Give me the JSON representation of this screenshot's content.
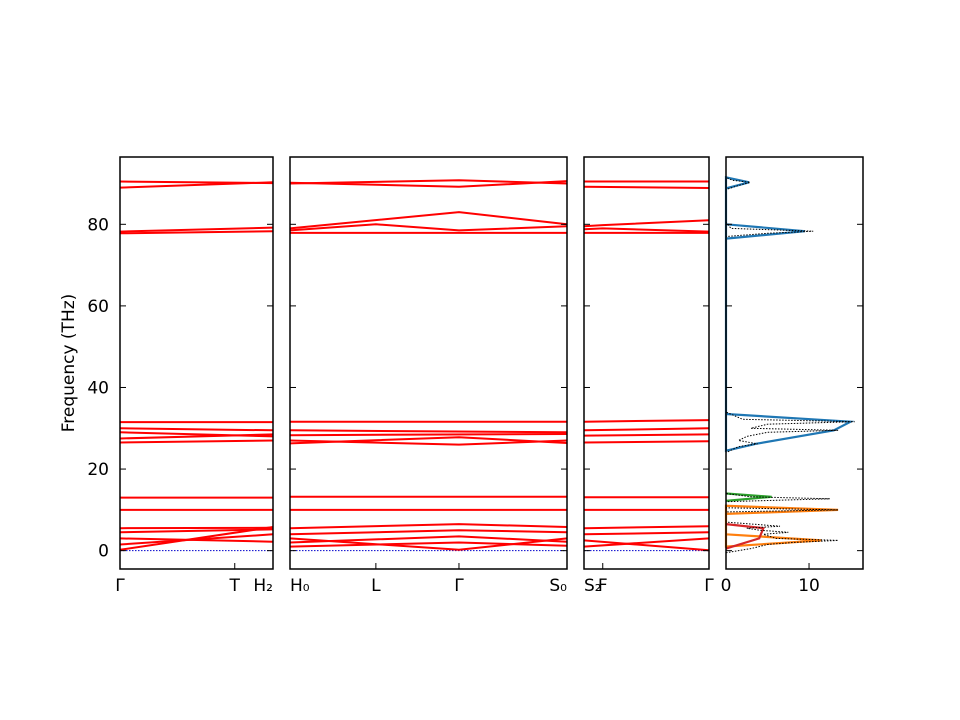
{
  "chart_data": {
    "type": "line",
    "ylabel": "Frequency (THz)",
    "ylim": [
      -4.5,
      96.5
    ],
    "yticks": [
      0,
      20,
      40,
      60,
      80
    ],
    "colors": {
      "bands": "#ff0000",
      "zero_line": "#0000cc",
      "dos_total": "#000000",
      "dos_high": "#1f77b4",
      "dos_mid_orange": "#ff7f0e",
      "dos_mid_green": "#2ca02c",
      "dos_low_red": "#d62728"
    },
    "panels": [
      {
        "tick_labels": [
          "Γ",
          "T",
          "H₂"
        ],
        "tick_positions": [
          0,
          0.75,
          1.0
        ]
      },
      {
        "tick_labels": [
          "H₀",
          "L",
          "Γ",
          "S₀"
        ],
        "tick_positions": [
          0,
          0.31,
          0.61,
          1.0
        ]
      },
      {
        "tick_labels": [
          "S₂",
          "F",
          "Γ"
        ],
        "tick_positions": [
          0,
          0.15,
          1.0
        ]
      }
    ],
    "bands": [
      {
        "panel": 0,
        "x": [
          0,
          1
        ],
        "y": [
          0.2,
          5.8
        ]
      },
      {
        "panel": 0,
        "x": [
          0,
          1
        ],
        "y": [
          1.5,
          4.0
        ]
      },
      {
        "panel": 0,
        "x": [
          0,
          1
        ],
        "y": [
          3.0,
          2.2
        ]
      },
      {
        "panel": 0,
        "x": [
          0,
          1
        ],
        "y": [
          4.5,
          5.2
        ]
      },
      {
        "panel": 0,
        "x": [
          0,
          1
        ],
        "y": [
          5.5,
          5.6
        ]
      },
      {
        "panel": 0,
        "x": [
          0,
          1
        ],
        "y": [
          10.0,
          10.0
        ]
      },
      {
        "panel": 0,
        "x": [
          0,
          1
        ],
        "y": [
          13.0,
          13.0
        ]
      },
      {
        "panel": 0,
        "x": [
          0,
          1
        ],
        "y": [
          26.5,
          27.0
        ]
      },
      {
        "panel": 0,
        "x": [
          0,
          1
        ],
        "y": [
          27.5,
          28.5
        ]
      },
      {
        "panel": 0,
        "x": [
          0,
          1
        ],
        "y": [
          29.0,
          28.0
        ]
      },
      {
        "panel": 0,
        "x": [
          0,
          1
        ],
        "y": [
          30.0,
          29.5
        ]
      },
      {
        "panel": 0,
        "x": [
          0,
          1
        ],
        "y": [
          31.5,
          31.5
        ]
      },
      {
        "panel": 0,
        "x": [
          0,
          1
        ],
        "y": [
          77.8,
          78.3
        ]
      },
      {
        "panel": 0,
        "x": [
          0,
          1
        ],
        "y": [
          78.2,
          79.2
        ]
      },
      {
        "panel": 0,
        "x": [
          0,
          1
        ],
        "y": [
          89.0,
          90.3
        ]
      },
      {
        "panel": 0,
        "x": [
          0,
          1
        ],
        "y": [
          90.5,
          90.1
        ]
      },
      {
        "panel": 1,
        "x": [
          0,
          0.61,
          1
        ],
        "y": [
          79.0,
          83.0,
          80.0
        ]
      },
      {
        "panel": 1,
        "x": [
          0,
          0.31,
          0.61,
          1
        ],
        "y": [
          78.5,
          80.0,
          78.5,
          79.5
        ]
      },
      {
        "panel": 1,
        "x": [
          0,
          1
        ],
        "y": [
          77.9,
          77.9
        ]
      },
      {
        "panel": 1,
        "x": [
          0,
          0.61,
          1
        ],
        "y": [
          90.2,
          89.2,
          90.6
        ]
      },
      {
        "panel": 1,
        "x": [
          0,
          0.61,
          1
        ],
        "y": [
          90.0,
          90.8,
          90.0
        ]
      },
      {
        "panel": 1,
        "x": [
          0,
          1
        ],
        "y": [
          31.6,
          31.6
        ]
      },
      {
        "panel": 1,
        "x": [
          0,
          1
        ],
        "y": [
          29.5,
          29.0
        ]
      },
      {
        "panel": 1,
        "x": [
          0,
          1
        ],
        "y": [
          28.3,
          28.6
        ]
      },
      {
        "panel": 1,
        "x": [
          0,
          0.61,
          1
        ],
        "y": [
          27.0,
          26.0,
          27.0
        ]
      },
      {
        "panel": 1,
        "x": [
          0,
          0.61,
          1
        ],
        "y": [
          26.3,
          27.8,
          26.4
        ]
      },
      {
        "panel": 1,
        "x": [
          0,
          1
        ],
        "y": [
          13.2,
          13.2
        ]
      },
      {
        "panel": 1,
        "x": [
          0,
          1
        ],
        "y": [
          10.0,
          10.0
        ]
      },
      {
        "panel": 1,
        "x": [
          0,
          0.61,
          1
        ],
        "y": [
          5.5,
          6.5,
          5.8
        ]
      },
      {
        "panel": 1,
        "x": [
          0,
          0.61,
          1
        ],
        "y": [
          4.0,
          5.0,
          4.5
        ]
      },
      {
        "panel": 1,
        "x": [
          0,
          0.61,
          1
        ],
        "y": [
          3.0,
          0.2,
          3.0
        ]
      },
      {
        "panel": 1,
        "x": [
          0,
          0.61,
          1
        ],
        "y": [
          2.0,
          3.5,
          2.2
        ]
      },
      {
        "panel": 1,
        "x": [
          0,
          0.61,
          1
        ],
        "y": [
          1.0,
          2.0,
          1.2
        ]
      },
      {
        "panel": 2,
        "x": [
          0,
          1
        ],
        "y": [
          90.5,
          90.5
        ]
      },
      {
        "panel": 2,
        "x": [
          0,
          1
        ],
        "y": [
          89.2,
          88.9
        ]
      },
      {
        "panel": 2,
        "x": [
          0,
          0.15,
          1
        ],
        "y": [
          79.5,
          79.8,
          81.0
        ]
      },
      {
        "panel": 2,
        "x": [
          0,
          0.15,
          1
        ],
        "y": [
          78.8,
          79.0,
          78.2
        ]
      },
      {
        "panel": 2,
        "x": [
          0,
          1
        ],
        "y": [
          77.9,
          77.9
        ]
      },
      {
        "panel": 2,
        "x": [
          0,
          1
        ],
        "y": [
          31.6,
          32.0
        ]
      },
      {
        "panel": 2,
        "x": [
          0,
          1
        ],
        "y": [
          29.5,
          30.0
        ]
      },
      {
        "panel": 2,
        "x": [
          0,
          1
        ],
        "y": [
          28.2,
          28.5
        ]
      },
      {
        "panel": 2,
        "x": [
          0,
          1
        ],
        "y": [
          26.5,
          26.8
        ]
      },
      {
        "panel": 2,
        "x": [
          0,
          1
        ],
        "y": [
          13.1,
          13.1
        ]
      },
      {
        "panel": 2,
        "x": [
          0,
          1
        ],
        "y": [
          10.0,
          10.0
        ]
      },
      {
        "panel": 2,
        "x": [
          0,
          1
        ],
        "y": [
          5.5,
          6.0
        ]
      },
      {
        "panel": 2,
        "x": [
          0,
          1
        ],
        "y": [
          4.0,
          4.5
        ]
      },
      {
        "panel": 2,
        "x": [
          0,
          1
        ],
        "y": [
          2.5,
          0.1
        ]
      },
      {
        "panel": 2,
        "x": [
          0,
          1
        ],
        "y": [
          1.0,
          3.0
        ]
      }
    ],
    "dos": {
      "xlim": [
        0,
        16.5
      ],
      "xticks": [
        0,
        10
      ],
      "total": {
        "y": [
          -0.5,
          0.5,
          1.5,
          2.0,
          2.5,
          3.0,
          4.0,
          4.5,
          5.0,
          5.5,
          6.0,
          7.0,
          9.5,
          10.0,
          10.5,
          12.0,
          12.7,
          13.2,
          14.0,
          24.0,
          25.5,
          26.2,
          27.0,
          28.0,
          29.0,
          29.5,
          30.0,
          31.0,
          31.6,
          32.2,
          34.0,
          77.0,
          77.8,
          78.3,
          79.0,
          80.5,
          88.5,
          89.2,
          89.8,
          90.3,
          90.8,
          91.5
        ],
        "values": [
          0,
          3.0,
          5.0,
          8.0,
          13.5,
          6.0,
          4.5,
          7.5,
          4.0,
          2.5,
          6.5,
          0,
          0,
          13.5,
          0,
          0,
          12.5,
          3.0,
          0,
          0,
          1.5,
          3.8,
          1.5,
          2.5,
          5.0,
          13.5,
          3.0,
          5.0,
          15.5,
          2.0,
          0,
          0,
          5.0,
          10.5,
          0.6,
          0,
          0,
          1.0,
          2.0,
          2.9,
          0.8,
          0
        ]
      },
      "partials": [
        {
          "name": "high",
          "y": [
            76.5,
            78.3,
            80.0,
            88.8,
            90.3,
            91.5,
            24.5,
            26.2,
            29.5,
            31.6,
            33.5
          ],
          "values": [
            0,
            9.5,
            0,
            0,
            2.8,
            0,
            0,
            3.6,
            13.0,
            15.0,
            0
          ]
        },
        {
          "name": "mid_orange",
          "y": [
            9.0,
            10.0,
            11.0,
            1.0,
            2.5,
            4.0
          ],
          "values": [
            0,
            13.5,
            0,
            0,
            11.5,
            0
          ]
        },
        {
          "name": "mid_green",
          "y": [
            12.2,
            13.2,
            14.0
          ],
          "values": [
            0,
            5.5,
            0
          ]
        },
        {
          "name": "low_red",
          "y": [
            0.5,
            3.0,
            5.5,
            6.5
          ],
          "values": [
            0,
            4.0,
            4.5,
            0
          ]
        }
      ]
    }
  }
}
